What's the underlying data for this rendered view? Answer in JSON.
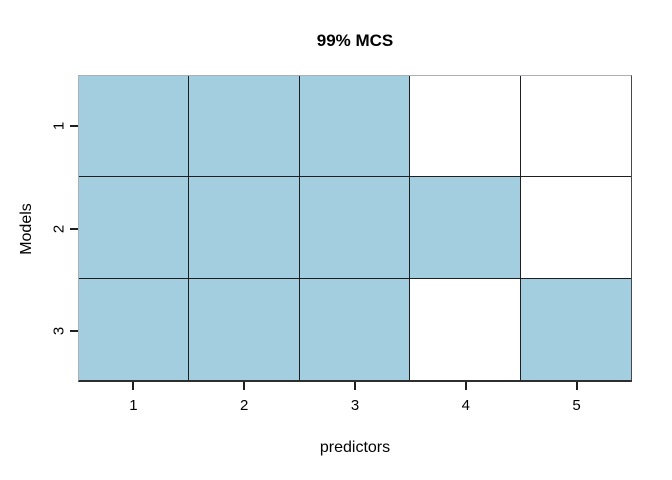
{
  "chart_data": {
    "type": "heatmap",
    "title": "99% MCS",
    "xlabel": "predictors",
    "ylabel": "Models",
    "x_tick_labels": [
      "1",
      "2",
      "3",
      "4",
      "5"
    ],
    "y_tick_labels": [
      "1",
      "2",
      "3"
    ],
    "x_values": [
      1,
      2,
      3,
      4,
      5
    ],
    "y_values": [
      1,
      2,
      3
    ],
    "matrix": [
      [
        1,
        1,
        1,
        0,
        0
      ],
      [
        1,
        1,
        1,
        1,
        0
      ],
      [
        1,
        1,
        1,
        0,
        1
      ]
    ],
    "value_meaning": {
      "1": "included (blue cell)",
      "0": "excluded (white cell)"
    },
    "colors": {
      "filled": "#a2cedf",
      "empty": "#ffffff",
      "grid_line": "#1f1f1f"
    },
    "grid": true,
    "legend": null
  }
}
